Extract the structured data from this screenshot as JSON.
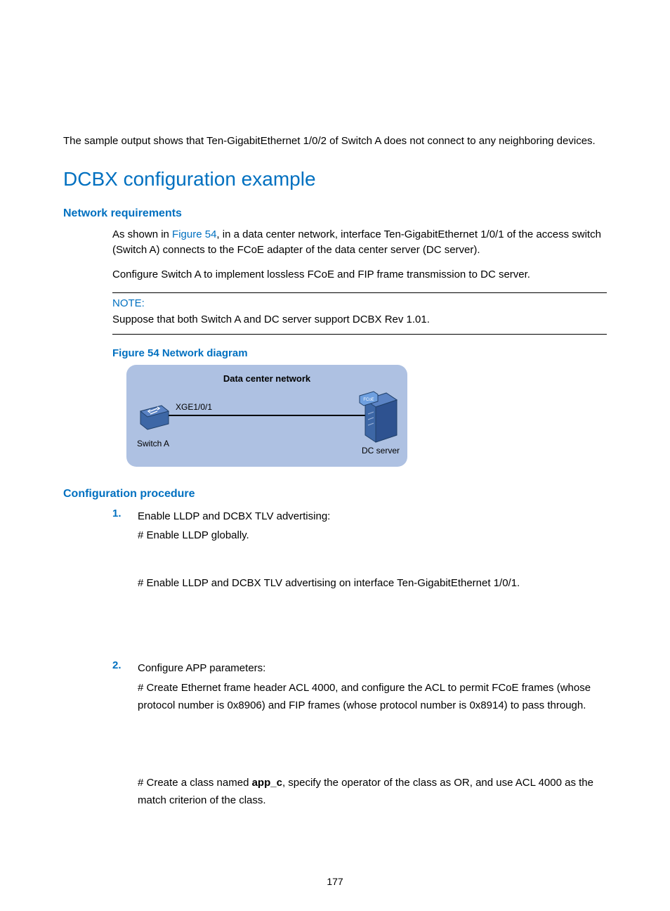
{
  "intro": "The sample output shows that Ten-GigabitEthernet 1/0/2 of Switch A does not connect to any neighboring devices.",
  "section_title": "DCBX configuration example",
  "network_requirements": {
    "heading": "Network requirements",
    "para1_a": "As shown in ",
    "figref": "Figure 54",
    "para1_b": ", in a data center network, interface Ten-GigabitEthernet 1/0/1 of the access switch (Switch A) connects to the FCoE adapter of the data center server (DC server).",
    "para2": "Configure Switch A to implement lossless FCoE and FIP frame transmission to DC server."
  },
  "note": {
    "label": "NOTE:",
    "text": "Suppose that both Switch A and DC server support DCBX Rev 1.01."
  },
  "figure": {
    "caption": "Figure 54 Network diagram",
    "diagram": {
      "bg_color": "#aec1e2",
      "title": "Data center network",
      "port_label": "XGE1/0/1",
      "switch_label": "Switch A",
      "server_label": "DC server",
      "server_card_label": "FCoE",
      "switch_color": "#3d67a6",
      "server_color": "#3d67a6",
      "link_color": "#000000",
      "text_color": "#000000",
      "title_fontsize": 13,
      "label_fontsize": 12
    }
  },
  "config_procedure": {
    "heading": "Configuration procedure",
    "steps": [
      {
        "title": "Enable LLDP and DCBX TLV advertising:",
        "lines": [
          "# Enable LLDP globally.",
          "# Enable LLDP and DCBX TLV advertising on interface Ten-GigabitEthernet 1/0/1."
        ]
      },
      {
        "title": "Configure APP parameters:",
        "lines": [
          "# Create Ethernet frame header ACL 4000, and configure the ACL to permit FCoE frames (whose protocol number is 0x8906) and FIP frames (whose protocol number is 0x8914) to pass through.",
          "# Create a class named |app_c|, specify the operator of the class as OR, and use ACL 4000 as the match criterion of the class."
        ]
      }
    ]
  },
  "page_number": "177",
  "colors": {
    "heading_blue": "#0070c0",
    "body_text": "#000000"
  }
}
